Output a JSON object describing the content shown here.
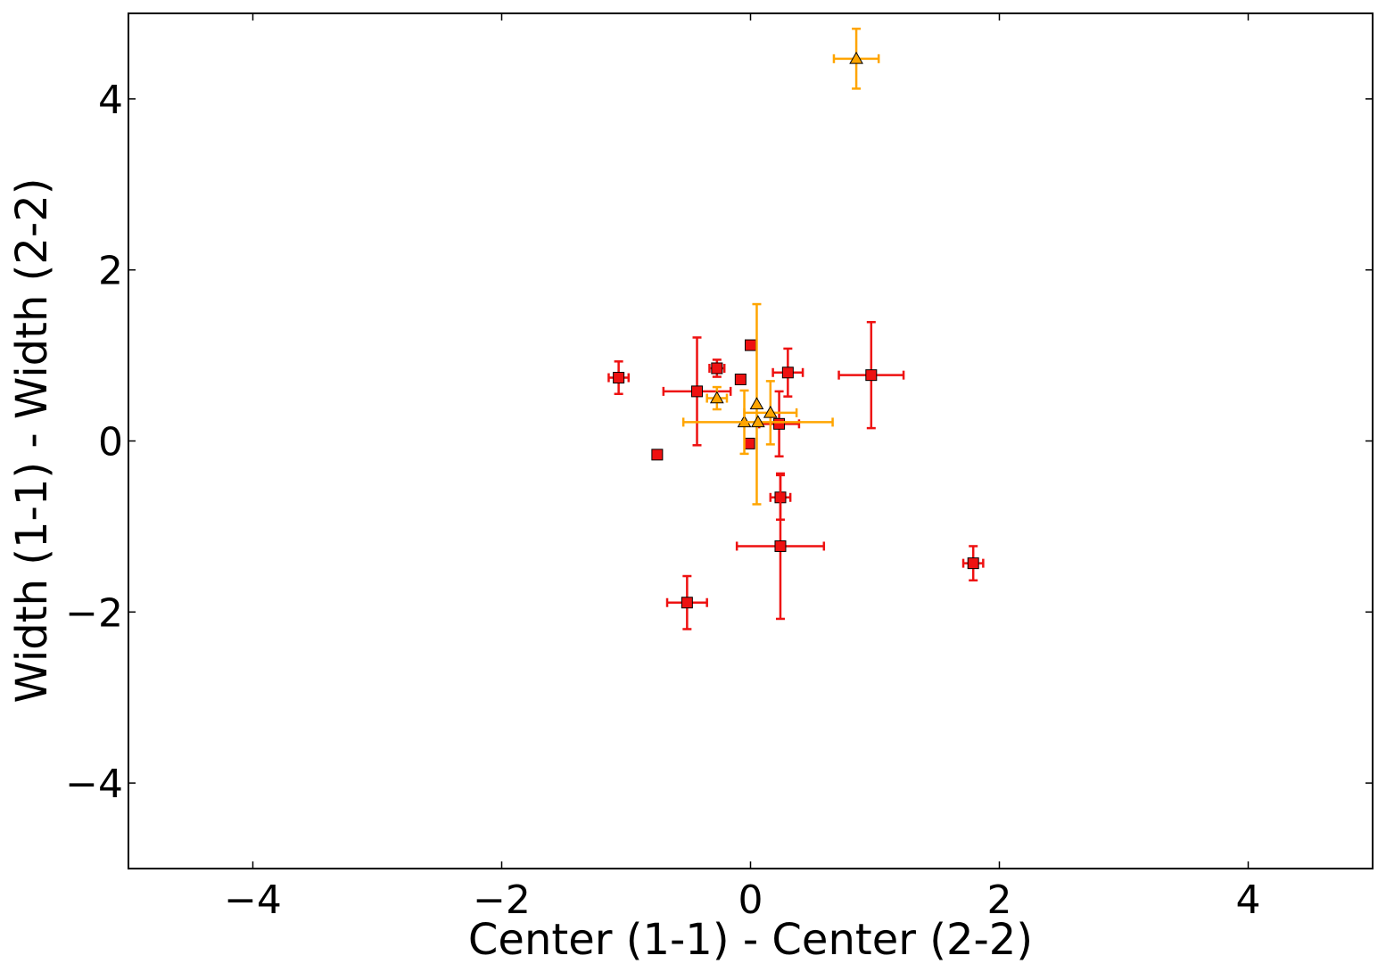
{
  "chart_data": {
    "type": "scatter",
    "xlabel": "Center (1-1) - Center (2-2)",
    "ylabel": "Width (1-1) - Width (2-2)",
    "xlim": [
      -5,
      5
    ],
    "ylim": [
      -5,
      5
    ],
    "xticks": [
      -4,
      -2,
      0,
      2,
      4
    ],
    "yticks": [
      -4,
      -2,
      0,
      2,
      4
    ],
    "xtick_labels": [
      "−4",
      "−2",
      "0",
      "2",
      "4"
    ],
    "ytick_labels": [
      "−4",
      "−2",
      "0",
      "2",
      "4"
    ],
    "grid": false,
    "legend": false,
    "series": [
      {
        "marker": "square",
        "color": "#ee1111",
        "points": [
          {
            "x": -1.06,
            "y": 0.74,
            "xerr": 0.08,
            "yerr": 0.19
          },
          {
            "x": -0.43,
            "y": 0.58,
            "xerr": 0.27,
            "yerr": 0.63
          },
          {
            "x": -0.27,
            "y": 0.85,
            "xerr": 0.06,
            "yerr": 0.1
          },
          {
            "x": -0.08,
            "y": 0.72,
            "xerr": 0.0,
            "yerr": 0.0
          },
          {
            "x": 0.0,
            "y": 1.12,
            "xerr": 0.0,
            "yerr": 0.0
          },
          {
            "x": -0.75,
            "y": -0.16,
            "xerr": 0.0,
            "yerr": 0.0
          },
          {
            "x": -0.01,
            "y": -0.03,
            "xerr": 0.0,
            "yerr": 0.0
          },
          {
            "x": 0.23,
            "y": 0.2,
            "xerr": 0.16,
            "yerr": 0.38
          },
          {
            "x": 0.3,
            "y": 0.8,
            "xerr": 0.12,
            "yerr": 0.28
          },
          {
            "x": 0.97,
            "y": 0.77,
            "xerr": 0.26,
            "yerr": 0.62
          },
          {
            "x": 0.24,
            "y": -0.66,
            "xerr": 0.08,
            "yerr": 0.26
          },
          {
            "x": 0.24,
            "y": -1.23,
            "xerr": 0.35,
            "yerr": 0.85
          },
          {
            "x": -0.51,
            "y": -1.89,
            "xerr": 0.16,
            "yerr": 0.31
          },
          {
            "x": 1.79,
            "y": -1.43,
            "xerr": 0.08,
            "yerr": 0.2
          }
        ]
      },
      {
        "marker": "triangle",
        "color": "#ffa500",
        "points": [
          {
            "x": 0.85,
            "y": 4.47,
            "xerr": 0.18,
            "yerr": 0.35
          },
          {
            "x": -0.27,
            "y": 0.5,
            "xerr": 0.08,
            "yerr": 0.13
          },
          {
            "x": 0.05,
            "y": 0.43,
            "xerr": 0.0,
            "yerr": 1.17
          },
          {
            "x": -0.05,
            "y": 0.22,
            "xerr": 0.0,
            "yerr": 0.37
          },
          {
            "x": 0.06,
            "y": 0.22,
            "xerr": 0.6,
            "yerr": 0.0
          },
          {
            "x": 0.16,
            "y": 0.33,
            "xerr": 0.21,
            "yerr": 0.37
          }
        ]
      }
    ]
  }
}
